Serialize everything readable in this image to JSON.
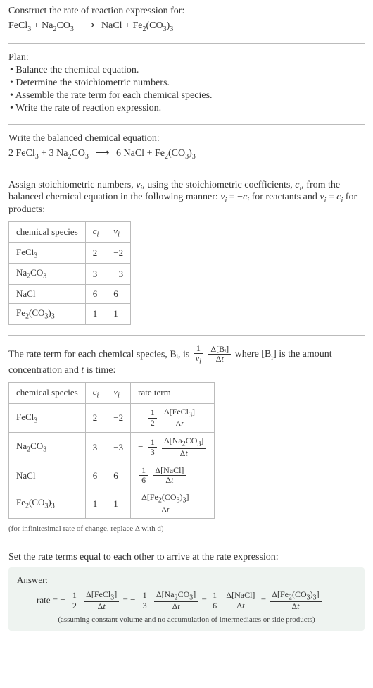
{
  "title": "Construct the rate of reaction expression for:",
  "equation_unbalanced": {
    "lhs": [
      "FeCl₃",
      "Na₂CO₃"
    ],
    "rhs": [
      "NaCl",
      "Fe₂(CO₃)₃"
    ]
  },
  "plan_heading": "Plan:",
  "plan": [
    "Balance the chemical equation.",
    "Determine the stoichiometric numbers.",
    "Assemble the rate term for each chemical species.",
    "Write the rate of reaction expression."
  ],
  "balanced_heading": "Write the balanced chemical equation:",
  "equation_balanced": {
    "lhs": [
      {
        "coef": "2",
        "sp": "FeCl₃"
      },
      {
        "coef": "3",
        "sp": "Na₂CO₃"
      }
    ],
    "rhs": [
      {
        "coef": "6",
        "sp": "NaCl"
      },
      {
        "coef": "",
        "sp": "Fe₂(CO₃)₃"
      }
    ]
  },
  "stoich_text_a": "Assign stoichiometric numbers, νᵢ, using the stoichiometric coefficients, cᵢ, from the balanced chemical equation in the following manner: νᵢ = −cᵢ for reactants and νᵢ = cᵢ for products:",
  "table1": {
    "headers": [
      "chemical species",
      "cᵢ",
      "νᵢ"
    ],
    "rows": [
      [
        "FeCl₃",
        "2",
        "−2"
      ],
      [
        "Na₂CO₃",
        "3",
        "−3"
      ],
      [
        "NaCl",
        "6",
        "6"
      ],
      [
        "Fe₂(CO₃)₃",
        "1",
        "1"
      ]
    ]
  },
  "rate_term_text_a": "The rate term for each chemical species, Bᵢ, is ",
  "rate_term_text_b": " where [Bᵢ] is the amount concentration and t is time:",
  "rate_frac_outer": {
    "num": "1",
    "den": "νᵢ"
  },
  "rate_frac_inner": {
    "num": "Δ[Bᵢ]",
    "den": "Δt"
  },
  "table2": {
    "headers": [
      "chemical species",
      "cᵢ",
      "νᵢ",
      "rate term"
    ],
    "rows": [
      {
        "sp": "FeCl₃",
        "c": "2",
        "v": "−2",
        "sign": "−",
        "coef_num": "1",
        "coef_den": "2",
        "d_num": "Δ[FeCl₃]",
        "d_den": "Δt"
      },
      {
        "sp": "Na₂CO₃",
        "c": "3",
        "v": "−3",
        "sign": "−",
        "coef_num": "1",
        "coef_den": "3",
        "d_num": "Δ[Na₂CO₃]",
        "d_den": "Δt"
      },
      {
        "sp": "NaCl",
        "c": "6",
        "v": "6",
        "sign": "",
        "coef_num": "1",
        "coef_den": "6",
        "d_num": "Δ[NaCl]",
        "d_den": "Δt"
      },
      {
        "sp": "Fe₂(CO₃)₃",
        "c": "1",
        "v": "1",
        "sign": "",
        "coef_num": "",
        "coef_den": "",
        "d_num": "Δ[Fe₂(CO₃)₃]",
        "d_den": "Δt"
      }
    ]
  },
  "infinitesimal_note": "(for infinitesimal rate of change, replace Δ with d)",
  "set_equal_text": "Set the rate terms equal to each other to arrive at the rate expression:",
  "answer_label": "Answer:",
  "rate_prefix": "rate = ",
  "answer_terms": [
    {
      "sign": "−",
      "coef_num": "1",
      "coef_den": "2",
      "d_num": "Δ[FeCl₃]",
      "d_den": "Δt"
    },
    {
      "sign": "−",
      "coef_num": "1",
      "coef_den": "3",
      "d_num": "Δ[Na₂CO₃]",
      "d_den": "Δt"
    },
    {
      "sign": "",
      "coef_num": "1",
      "coef_den": "6",
      "d_num": "Δ[NaCl]",
      "d_den": "Δt"
    },
    {
      "sign": "",
      "coef_num": "",
      "coef_den": "",
      "d_num": "Δ[Fe₂(CO₃)₃]",
      "d_den": "Δt"
    }
  ],
  "assumption": "(assuming constant volume and no accumulation of intermediates or side products)",
  "colors": {
    "border": "#bbbbbb",
    "text": "#333333",
    "answer_bg": "#eef3f0"
  }
}
